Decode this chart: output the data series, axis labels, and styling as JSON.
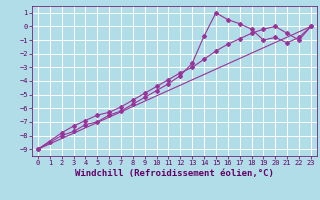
{
  "xlabel": "Windchill (Refroidissement éolien,°C)",
  "xlim": [
    -0.5,
    23.5
  ],
  "ylim": [
    -9.5,
    1.5
  ],
  "xticks": [
    0,
    1,
    2,
    3,
    4,
    5,
    6,
    7,
    8,
    9,
    10,
    11,
    12,
    13,
    14,
    15,
    16,
    17,
    18,
    19,
    20,
    21,
    22,
    23
  ],
  "yticks": [
    1,
    0,
    -1,
    -2,
    -3,
    -4,
    -5,
    -6,
    -7,
    -8,
    -9
  ],
  "background_color": "#b0dde8",
  "grid_color": "#ffffff",
  "line_color": "#993399",
  "series1_x": [
    0,
    1,
    2,
    3,
    4,
    5,
    6,
    7,
    8,
    9,
    10,
    11,
    12,
    13,
    14,
    15,
    16,
    17,
    18,
    19,
    20,
    21,
    22,
    23
  ],
  "series1_y": [
    -9.0,
    -8.5,
    -8.0,
    -7.7,
    -7.2,
    -7.0,
    -6.5,
    -6.2,
    -5.7,
    -5.2,
    -4.7,
    -4.2,
    -3.6,
    -2.7,
    -0.7,
    1.0,
    0.5,
    0.2,
    -0.2,
    -1.0,
    -0.8,
    -1.2,
    -0.8,
    0.0
  ],
  "series2_x": [
    0,
    2,
    3,
    4,
    5,
    6,
    7,
    8,
    9,
    10,
    11,
    12,
    13,
    14,
    15,
    16,
    17,
    18,
    19,
    20,
    21,
    22,
    23
  ],
  "series2_y": [
    -9.0,
    -7.8,
    -7.3,
    -6.9,
    -6.5,
    -6.3,
    -5.9,
    -5.4,
    -4.9,
    -4.4,
    -3.9,
    -3.4,
    -3.0,
    -2.4,
    -1.8,
    -1.3,
    -0.9,
    -0.5,
    -0.2,
    0.0,
    -0.5,
    -1.0,
    0.0
  ],
  "trend_x": [
    0,
    23
  ],
  "trend_y": [
    -9.0,
    0.0
  ],
  "font_color": "#660066",
  "tick_fontsize": 5,
  "label_fontsize": 6.5
}
